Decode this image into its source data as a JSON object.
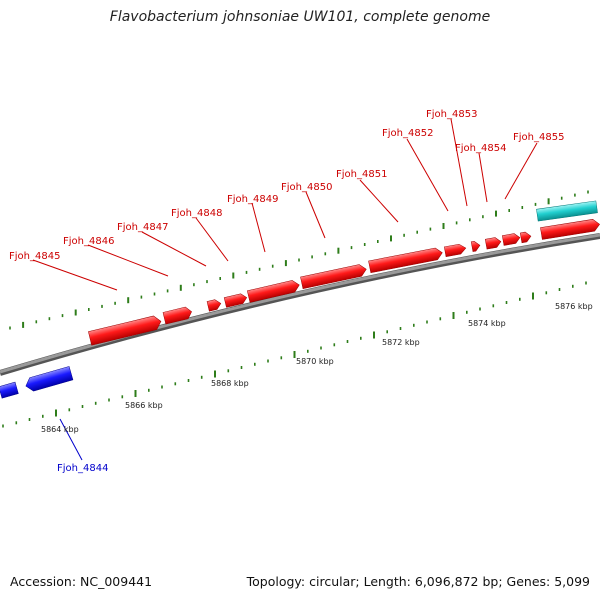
{
  "title": "Flavobacterium johnsoniae UW101, complete genome",
  "footer": {
    "accession": "Accession: NC_009441",
    "summary": "Topology: circular; Length: 6,096,872 bp; Genes: 5,099"
  },
  "colors": {
    "forward_gene": "#ff0000",
    "reverse_gene": "#0000ff",
    "rna_feature": "#00c8c8",
    "backbone": "#808080",
    "tick": "#2e7d1a",
    "forward_label": "#cc0000",
    "reverse_label": "#0000cc"
  },
  "scale_labels": [
    "5864 kbp",
    "5866 kbp",
    "5868 kbp",
    "5870 kbp",
    "5872 kbp",
    "5874 kbp",
    "5876 kbp"
  ],
  "gene_labels": {
    "forward": [
      "Fjoh_4845",
      "Fjoh_4846",
      "Fjoh_4847",
      "Fjoh_4848",
      "Fjoh_4849",
      "Fjoh_4850",
      "Fjoh_4851",
      "Fjoh_4852",
      "Fjoh_4853",
      "Fjoh_4854",
      "Fjoh_4855"
    ],
    "reverse": [
      "Fjoh_4844"
    ]
  }
}
